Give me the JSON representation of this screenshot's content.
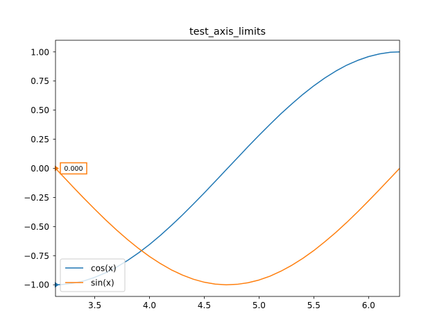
{
  "chart_data": {
    "type": "line",
    "title": "test_axis_limits",
    "xlabel": "",
    "ylabel": "",
    "xlim": [
      3.14159,
      6.28319
    ],
    "ylim": [
      -1.1,
      1.1
    ],
    "grid": false,
    "legend_position": "lower-left",
    "x_ticks": [
      3.5,
      4.0,
      4.5,
      5.0,
      5.5,
      6.0
    ],
    "x_tick_labels": [
      "3.5",
      "4.0",
      "4.5",
      "5.0",
      "5.5",
      "6.0"
    ],
    "y_ticks": [
      -1.0,
      -0.75,
      -0.5,
      -0.25,
      0.0,
      0.25,
      0.5,
      0.75,
      1.0
    ],
    "y_tick_labels": [
      "−1.00",
      "−0.75",
      "−0.50",
      "−0.25",
      "0.00",
      "0.25",
      "0.50",
      "0.75",
      "1.00"
    ],
    "series": [
      {
        "name": "cos(x)",
        "color": "#1f77b4",
        "x": [
          3.1416,
          3.2,
          3.3,
          3.4,
          3.5,
          3.6,
          3.7,
          3.8,
          3.9,
          4.0,
          4.1,
          4.2,
          4.3,
          4.4,
          4.5,
          4.6,
          4.7,
          4.8,
          4.9,
          5.0,
          5.1,
          5.2,
          5.3,
          5.4,
          5.5,
          5.6,
          5.7,
          5.8,
          5.9,
          6.0,
          6.1,
          6.2,
          6.2832
        ],
        "values": [
          -1.0,
          -0.998,
          -0.987,
          -0.967,
          -0.936,
          -0.897,
          -0.848,
          -0.791,
          -0.726,
          -0.654,
          -0.575,
          -0.49,
          -0.401,
          -0.307,
          -0.211,
          -0.112,
          -0.012,
          0.087,
          0.187,
          0.284,
          0.378,
          0.469,
          0.554,
          0.635,
          0.709,
          0.776,
          0.835,
          0.886,
          0.927,
          0.96,
          0.983,
          0.997,
          1.0
        ]
      },
      {
        "name": "sin(x)",
        "color": "#ff7f0e",
        "x": [
          3.1416,
          3.2,
          3.3,
          3.4,
          3.5,
          3.6,
          3.7,
          3.8,
          3.9,
          4.0,
          4.1,
          4.2,
          4.3,
          4.4,
          4.5,
          4.6,
          4.7,
          4.8,
          4.9,
          5.0,
          5.1,
          5.2,
          5.3,
          5.4,
          5.5,
          5.6,
          5.7,
          5.8,
          5.9,
          6.0,
          6.1,
          6.2,
          6.2832
        ],
        "values": [
          0.0,
          -0.058,
          -0.158,
          -0.256,
          -0.351,
          -0.443,
          -0.53,
          -0.612,
          -0.688,
          -0.757,
          -0.818,
          -0.872,
          -0.916,
          -0.952,
          -0.978,
          -0.994,
          -1.0,
          -0.996,
          -0.982,
          -0.959,
          -0.926,
          -0.883,
          -0.832,
          -0.773,
          -0.706,
          -0.631,
          -0.551,
          -0.465,
          -0.374,
          -0.279,
          -0.182,
          -0.083,
          0.0
        ]
      }
    ],
    "markers": [
      {
        "series": "cos(x)",
        "x": 3.14159,
        "y": -1.0,
        "color": "#1f77b4"
      },
      {
        "series": "sin(x)",
        "x": 3.14159,
        "y": 0.0,
        "color": "#ff7f0e"
      }
    ],
    "annotations": [
      {
        "text": "0.000",
        "x": 3.14159,
        "y": 0.0,
        "border_color": "#ff7f0e"
      }
    ]
  }
}
